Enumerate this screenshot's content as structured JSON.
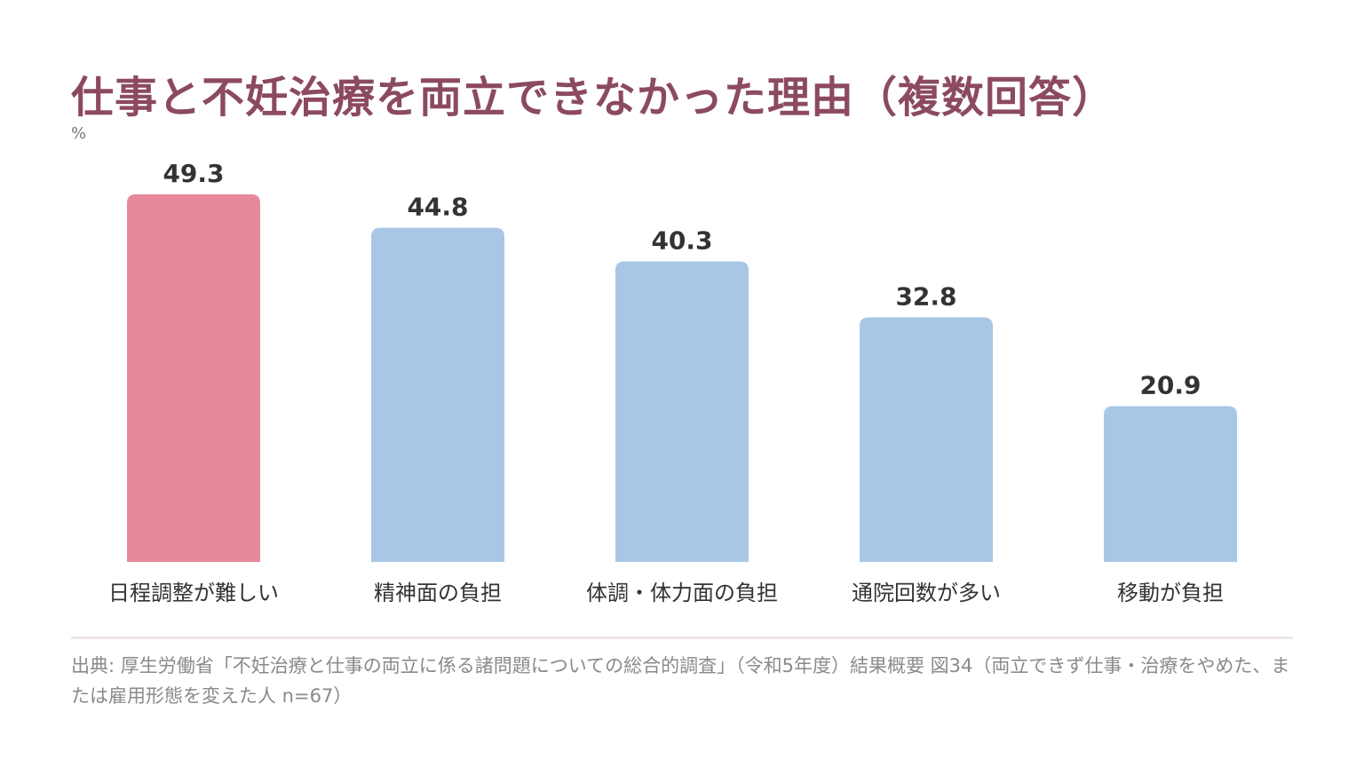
{
  "title": "仕事と不妊治療を両立できなかった理由（複数回答）",
  "unit": "%",
  "source": "出典: 厚生労働省「不妊治療と仕事の両立に係る諸問題についての総合的調査」（令和5年度）結果概要 図34（両立できず仕事・治療をやめた、または雇用形態を変えた人 n=67）",
  "colors": {
    "highlight": "#e8899b",
    "bar": "#a8c7e6",
    "value_label": "#333333",
    "category_label": "#333333"
  },
  "chart_data": {
    "type": "bar",
    "title": "仕事と不妊治療を両立できなかった理由（複数回答）",
    "ylabel": "%",
    "categories": [
      "日程調整が難しい",
      "精神面の負担",
      "体調・体力面の負担",
      "通院回数が多い",
      "移動が負担"
    ],
    "values": [
      49.3,
      44.8,
      40.3,
      32.8,
      20.9
    ],
    "value_labels": [
      "49.3",
      "44.8",
      "40.3",
      "32.8",
      "20.9"
    ],
    "highlight_index": 0,
    "ylim": [
      0,
      50
    ],
    "grid": false,
    "legend": "none"
  }
}
